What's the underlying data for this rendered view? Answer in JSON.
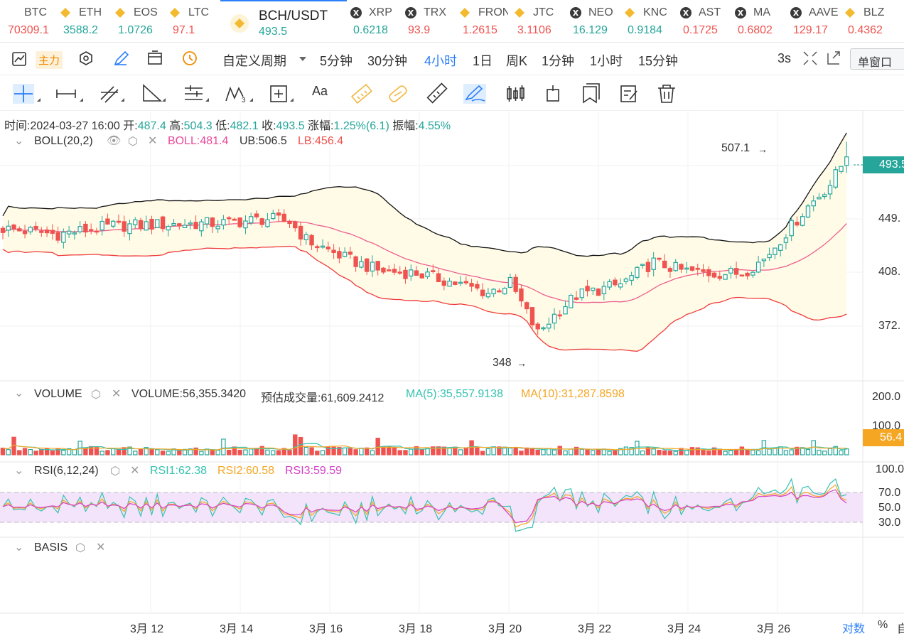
{
  "tickers": [
    {
      "name": "BTC",
      "price": "70309.1",
      "color": "#ef5350",
      "icon": "binance"
    },
    {
      "name": "ETH",
      "price": "3588.2",
      "color": "#26a69a",
      "icon": "binance"
    },
    {
      "name": "EOS",
      "price": "1.0726",
      "color": "#26a69a",
      "icon": "binance"
    },
    {
      "name": "LTC",
      "price": "97.1",
      "color": "#ef5350",
      "icon": "binance"
    },
    {
      "name": "BCH/USDT",
      "price": "493.5",
      "color": "#26a69a",
      "icon": "binance",
      "active": true
    },
    {
      "name": "XRP",
      "price": "0.6218",
      "color": "#26a69a",
      "icon": "dark"
    },
    {
      "name": "TRX",
      "price": "93.9",
      "color": "#ef5350",
      "icon": "dark"
    },
    {
      "name": "FRONT",
      "price": "1.2615",
      "color": "#ef5350",
      "icon": "binance"
    },
    {
      "name": "JTC",
      "price": "3.1106",
      "color": "#ef5350",
      "icon": "binance"
    },
    {
      "name": "NEO",
      "price": "16.129",
      "color": "#26a69a",
      "icon": "dark"
    },
    {
      "name": "KNC",
      "price": "0.9184",
      "color": "#26a69a",
      "icon": "binance"
    },
    {
      "name": "AST",
      "price": "0.1725",
      "color": "#ef5350",
      "icon": "dark"
    },
    {
      "name": "MA",
      "price": "0.6802",
      "color": "#ef5350",
      "icon": "dark"
    },
    {
      "name": "AAVE",
      "price": "129.17",
      "color": "#ef5350",
      "icon": "dark"
    },
    {
      "name": "BLZ",
      "price": "0.4362",
      "color": "#ef5350",
      "icon": "binance"
    }
  ],
  "toolbar": {
    "main_chip": "主力",
    "custom_period": "自定义周期",
    "periods": [
      "5分钟",
      "30分钟",
      "4小时",
      "1日",
      "周K",
      "1分钟",
      "1小时",
      "15分钟"
    ],
    "active_period": "4小时",
    "refresh": "3s",
    "window_mode": "单窗口",
    "text_tool": "Aa"
  },
  "ohlc": {
    "time_label": "时间:",
    "time": "2024-03-27 16:00",
    "open_label": "开:",
    "open": "487.4",
    "high_label": "高:",
    "high": "504.3",
    "low_label": "低:",
    "low": "482.1",
    "close_label": "收:",
    "close": "493.5",
    "chg_label": "涨幅:",
    "chg": "1.25%(6.1)",
    "amp_label": "振幅:",
    "amp": "4.55%"
  },
  "boll": {
    "name": "BOLL(20,2)",
    "boll": "BOLL:481.4",
    "ub": "UB:506.5",
    "lb": "LB:456.4"
  },
  "volume": {
    "name": "VOLUME",
    "value": "VOLUME:56,355.3420",
    "est": "预估成交量:61,609.2412",
    "ma5": "MA(5):35,557.9138",
    "ma10": "MA(10):31,287.8598",
    "axis": [
      "200.0",
      "100.0"
    ],
    "tag": "56.4"
  },
  "rsi": {
    "name": "RSI(6,12,24)",
    "r1": "RSI1:62.38",
    "r2": "RSI2:60.58",
    "r3": "RSI3:59.59",
    "axis": [
      "100.0",
      "70.0",
      "50.0",
      "30.0"
    ]
  },
  "basis": {
    "name": "BASIS"
  },
  "price_axis": [
    "449.",
    "408.",
    "372."
  ],
  "price_tag": "493.5",
  "annotations": {
    "high": "507.1",
    "low": "348"
  },
  "x_axis": [
    "3月 12",
    "3月 14",
    "3月 16",
    "3月 18",
    "3月 20",
    "3月 22",
    "3月 24",
    "3月 26"
  ],
  "bottom": {
    "log": "对数",
    "pct": "%",
    "auto": "自"
  },
  "chart_data": {
    "type": "candlestick",
    "symbol": "BCH/USDT",
    "interval": "4小时",
    "close_start": 442,
    "close_end": 493.5,
    "annotated_high": 507.1,
    "annotated_low": 348,
    "x_ticks": [
      "3月 12",
      "3月 14",
      "3月 16",
      "3月 18",
      "3月 20",
      "3月 22",
      "3月 24",
      "3月 26"
    ]
  }
}
